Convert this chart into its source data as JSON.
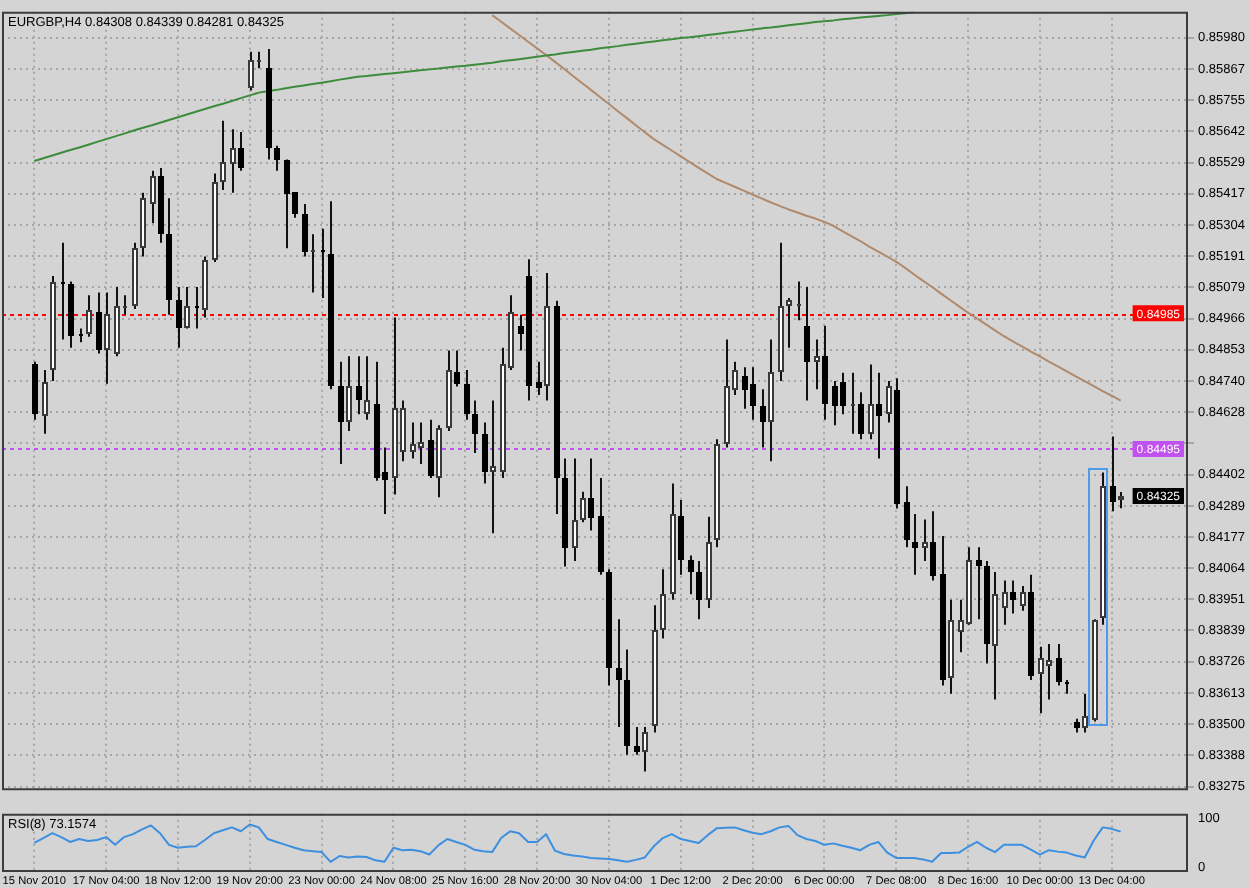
{
  "chart_data": [
    {
      "type": "candlestick",
      "title": "EURGBP,H4 0.84308 0.84339 0.84281 0.84325",
      "categories": [
        null,
        null,
        null,
        null,
        null,
        null,
        null,
        null,
        null,
        null,
        null,
        null,
        null,
        null,
        null,
        null,
        null,
        null,
        null,
        null,
        null,
        null,
        null,
        null,
        null,
        null,
        null,
        null,
        null,
        null,
        null,
        null,
        null,
        null,
        null,
        null,
        null,
        null,
        null,
        null,
        null,
        null,
        null,
        null,
        null,
        null,
        null,
        null,
        null,
        null,
        null,
        null,
        null,
        null,
        null,
        null,
        null,
        null,
        null,
        null,
        null,
        null,
        null,
        null,
        null,
        null,
        null,
        null,
        null,
        null,
        null,
        null,
        null,
        null,
        null,
        null,
        null,
        null,
        null,
        null,
        null,
        null,
        null,
        null,
        null,
        null,
        null,
        null,
        null,
        null,
        null,
        null,
        null,
        null,
        null,
        null,
        null,
        null,
        null,
        null,
        null,
        null,
        null,
        null,
        null,
        null,
        null,
        null,
        null,
        null,
        null,
        null,
        null,
        null,
        null,
        null,
        null,
        null,
        null,
        null,
        null,
        null
      ],
      "ohlc": [
        [
          0.848,
          0.8481,
          0.846,
          0.8462
        ],
        [
          0.8462,
          0.8478,
          0.8455,
          0.8474
        ],
        [
          0.8478,
          0.8512,
          0.8474,
          0.851
        ],
        [
          0.851,
          0.8524,
          0.8489,
          0.8509
        ],
        [
          0.8509,
          0.851,
          0.8486,
          0.849
        ],
        [
          0.8491,
          0.8493,
          0.8488,
          0.849
        ],
        [
          0.8491,
          0.8505,
          0.849,
          0.85
        ],
        [
          0.8499,
          0.8506,
          0.8484,
          0.8485
        ],
        [
          0.8485,
          0.8506,
          0.8473,
          0.8498
        ],
        [
          0.8484,
          0.8508,
          0.8483,
          0.8501
        ],
        [
          0.8501,
          0.8505,
          0.8498,
          0.8501
        ],
        [
          0.8501,
          0.8524,
          0.85,
          0.8522
        ],
        [
          0.8522,
          0.8542,
          0.8519,
          0.854
        ],
        [
          0.8538,
          0.855,
          0.8531,
          0.8548
        ],
        [
          0.8548,
          0.8551,
          0.8524,
          0.8527
        ],
        [
          0.8527,
          0.854,
          0.8498,
          0.8503
        ],
        [
          0.8503,
          0.8508,
          0.8486,
          0.8493
        ],
        [
          0.8493,
          0.8508,
          0.8493,
          0.8501
        ],
        [
          0.8501,
          0.8508,
          0.8493,
          0.85
        ],
        [
          0.85,
          0.8519,
          0.8497,
          0.8518
        ],
        [
          0.8518,
          0.8549,
          0.8517,
          0.8546
        ],
        [
          0.8546,
          0.8568,
          0.8543,
          0.8553
        ],
        [
          0.8552,
          0.8565,
          0.8542,
          0.8558
        ],
        [
          0.8558,
          0.8564,
          0.855,
          0.8551
        ],
        [
          0.858,
          0.8593,
          0.8579,
          0.859
        ],
        [
          0.8589,
          0.8593,
          0.8587,
          0.859
        ],
        [
          0.8587,
          0.8594,
          0.8554,
          0.8558
        ],
        [
          0.8558,
          0.8559,
          0.855,
          0.8554
        ],
        [
          0.8554,
          0.8554,
          0.8522,
          0.8542
        ],
        [
          0.8542,
          0.8542,
          0.8533,
          0.8534
        ],
        [
          0.8534,
          0.8538,
          0.8519,
          0.852
        ],
        [
          0.852,
          0.8527,
          0.8506,
          0.8521
        ],
        [
          0.8521,
          0.8529,
          0.8504,
          0.852
        ],
        [
          0.852,
          0.8539,
          0.8471,
          0.8472
        ],
        [
          0.8472,
          0.8481,
          0.8444,
          0.8459
        ],
        [
          0.8459,
          0.8483,
          0.8456,
          0.8472
        ],
        [
          0.8472,
          0.8483,
          0.8462,
          0.8467
        ],
        [
          0.8462,
          0.8483,
          0.846,
          0.8467
        ],
        [
          0.8466,
          0.8481,
          0.8438,
          0.8439
        ],
        [
          0.8441,
          0.845,
          0.8426,
          0.8438
        ],
        [
          0.8439,
          0.8497,
          0.8433,
          0.8464
        ],
        [
          0.8448,
          0.8467,
          0.8445,
          0.8464
        ],
        [
          0.8448,
          0.8459,
          0.8446,
          0.8451
        ],
        [
          0.845,
          0.8459,
          0.8444,
          0.8452
        ],
        [
          0.8453,
          0.846,
          0.8439,
          0.844
        ],
        [
          0.8439,
          0.8458,
          0.8432,
          0.8457
        ],
        [
          0.8457,
          0.8485,
          0.8456,
          0.8478
        ],
        [
          0.8477,
          0.8485,
          0.8472,
          0.8473
        ],
        [
          0.8473,
          0.8478,
          0.846,
          0.8462
        ],
        [
          0.8462,
          0.8467,
          0.8448,
          0.8455
        ],
        [
          0.8455,
          0.8459,
          0.8437,
          0.8441
        ],
        [
          0.8441,
          0.8467,
          0.8419,
          0.8443
        ],
        [
          0.8441,
          0.8486,
          0.8439,
          0.848
        ],
        [
          0.8479,
          0.8505,
          0.8478,
          0.8499
        ],
        [
          0.8494,
          0.8498,
          0.8485,
          0.8491
        ],
        [
          0.8512,
          0.8518,
          0.8467,
          0.8472
        ],
        [
          0.8474,
          0.8481,
          0.8469,
          0.8472
        ],
        [
          0.8472,
          0.8513,
          0.8467,
          0.8501
        ],
        [
          0.8501,
          0.8503,
          0.8426,
          0.8439
        ],
        [
          0.8439,
          0.8446,
          0.8407,
          0.8414
        ],
        [
          0.8414,
          0.8446,
          0.8409,
          0.8424
        ],
        [
          0.8424,
          0.8434,
          0.8423,
          0.8432
        ],
        [
          0.8432,
          0.8446,
          0.842,
          0.8425
        ],
        [
          0.8425,
          0.8439,
          0.8404,
          0.8405
        ],
        [
          0.8405,
          0.8406,
          0.8364,
          0.837
        ],
        [
          0.837,
          0.8388,
          0.8349,
          0.8366
        ],
        [
          0.8366,
          0.8377,
          0.8339,
          0.8342
        ],
        [
          0.8342,
          0.8349,
          0.8339,
          0.834
        ],
        [
          0.834,
          0.8349,
          0.8333,
          0.8347
        ],
        [
          0.8349,
          0.8393,
          0.8347,
          0.8384
        ],
        [
          0.8384,
          0.8406,
          0.8381,
          0.8397
        ],
        [
          0.8397,
          0.8437,
          0.8395,
          0.8426
        ],
        [
          0.8425,
          0.8431,
          0.8404,
          0.8409
        ],
        [
          0.8409,
          0.8411,
          0.8397,
          0.8405
        ],
        [
          0.8405,
          0.8409,
          0.8388,
          0.8395
        ],
        [
          0.8395,
          0.8425,
          0.8392,
          0.8416
        ],
        [
          0.8416,
          0.8453,
          0.8414,
          0.8451
        ],
        [
          0.8451,
          0.8489,
          0.845,
          0.8472
        ],
        [
          0.8471,
          0.8481,
          0.8469,
          0.8478
        ],
        [
          0.8476,
          0.8479,
          0.8464,
          0.8471
        ],
        [
          0.8473,
          0.8479,
          0.846,
          0.8465
        ],
        [
          0.8465,
          0.8471,
          0.845,
          0.8459
        ],
        [
          0.8459,
          0.8489,
          0.8445,
          0.8477
        ],
        [
          0.8477,
          0.8524,
          0.8474,
          0.8501
        ],
        [
          0.8501,
          0.8504,
          0.8486,
          0.8503
        ],
        [
          0.8501,
          0.851,
          0.8496,
          0.8502
        ],
        [
          0.8494,
          0.8508,
          0.8467,
          0.8481
        ],
        [
          0.8481,
          0.8489,
          0.8471,
          0.8483
        ],
        [
          0.8483,
          0.8494,
          0.846,
          0.8466
        ],
        [
          0.8472,
          0.8474,
          0.8458,
          0.8465
        ],
        [
          0.8474,
          0.8477,
          0.8462,
          0.8465
        ],
        [
          0.8465,
          0.8477,
          0.8455,
          0.8466
        ],
        [
          0.8466,
          0.847,
          0.8453,
          0.8455
        ],
        [
          0.8455,
          0.848,
          0.8453,
          0.8466
        ],
        [
          0.8466,
          0.8477,
          0.8446,
          0.8462
        ],
        [
          0.8462,
          0.8474,
          0.8459,
          0.8472
        ],
        [
          0.8471,
          0.8475,
          0.8428,
          0.843
        ],
        [
          0.843,
          0.8436,
          0.8414,
          0.8416
        ],
        [
          0.8416,
          0.8426,
          0.8404,
          0.8414
        ],
        [
          0.8414,
          0.8424,
          0.8409,
          0.8416
        ],
        [
          0.8416,
          0.8427,
          0.8402,
          0.8404
        ],
        [
          0.8404,
          0.8418,
          0.8364,
          0.8366
        ],
        [
          0.8367,
          0.8395,
          0.8361,
          0.8388
        ],
        [
          0.8384,
          0.8395,
          0.8376,
          0.8388
        ],
        [
          0.8386,
          0.8414,
          0.8386,
          0.8409
        ],
        [
          0.8409,
          0.8414,
          0.8388,
          0.8407
        ],
        [
          0.8407,
          0.8409,
          0.8372,
          0.8379
        ],
        [
          0.8378,
          0.8405,
          0.8359,
          0.8397
        ],
        [
          0.8392,
          0.8402,
          0.8386,
          0.8398
        ],
        [
          0.8398,
          0.8402,
          0.839,
          0.8395
        ],
        [
          0.8393,
          0.84,
          0.8391,
          0.8398
        ],
        [
          0.8398,
          0.8404,
          0.8366,
          0.8368
        ],
        [
          0.8368,
          0.8378,
          0.8354,
          0.8374
        ],
        [
          0.8371,
          0.8379,
          0.8359,
          0.8373
        ],
        [
          0.8374,
          0.8379,
          0.8364,
          0.8365
        ],
        [
          0.8365,
          0.8366,
          0.8361,
          0.8364
        ],
        [
          0.8351,
          0.8352,
          0.8347,
          0.8349
        ],
        [
          0.8349,
          0.8361,
          0.8347,
          0.8353
        ],
        [
          0.8352,
          0.8388,
          0.8351,
          0.8388
        ],
        [
          0.8388,
          0.8441,
          0.8386,
          0.8436
        ],
        [
          0.8436,
          0.8454,
          0.8427,
          0.843
        ],
        [
          0.84308,
          0.84339,
          0.84281,
          0.84325
        ]
      ],
      "series": [
        {
          "type": "line",
          "color": "#3c8c3c",
          "values": [
            0.85535,
            0.85545,
            0.85555,
            0.85565,
            0.85575,
            0.85584,
            0.85594,
            0.85604,
            0.85614,
            0.85624,
            0.85634,
            0.85644,
            0.85654,
            0.85663,
            0.85673,
            0.85683,
            0.85693,
            0.85703,
            0.85713,
            0.85723,
            0.85733,
            0.85742,
            0.85752,
            0.85762,
            0.85772,
            0.85782,
            0.85787,
            0.85792,
            0.85798,
            0.85803,
            0.85808,
            0.85813,
            0.85818,
            0.85823,
            0.85829,
            0.85834,
            0.85839,
            0.85842,
            0.85846,
            0.85849,
            0.85852,
            0.85856,
            0.85859,
            0.85863,
            0.85866,
            0.85869,
            0.85873,
            0.85876,
            0.85879,
            0.85883,
            0.85886,
            0.8589,
            0.85895,
            0.85899,
            0.85903,
            0.85907,
            0.85912,
            0.85916,
            0.8592,
            0.85925,
            0.85929,
            0.85933,
            0.85937,
            0.85942,
            0.85946,
            0.8595,
            0.85955,
            0.85959,
            0.85963,
            0.85967,
            0.85971,
            0.85975,
            0.85979,
            0.85982,
            0.85986,
            0.8599,
            0.85994,
            0.85998,
            0.86002,
            0.86006,
            0.8601,
            0.86014,
            0.86017,
            0.86021,
            0.86025,
            0.86029,
            0.86033,
            0.86037,
            0.8604,
            0.86043,
            0.86047,
            0.8605,
            0.86053,
            0.86056,
            0.86059,
            0.86062,
            0.86066,
            0.86069,
            0.86072,
            null,
            null,
            null,
            null,
            null,
            null,
            null,
            null,
            null,
            null,
            null,
            null,
            null,
            null,
            null,
            null,
            null,
            null,
            null,
            null,
            null,
            null,
            null
          ]
        },
        {
          "type": "line",
          "color": "#b08a6c",
          "values": [
            null,
            null,
            null,
            null,
            null,
            null,
            null,
            null,
            null,
            null,
            null,
            null,
            null,
            null,
            null,
            null,
            null,
            null,
            null,
            null,
            null,
            null,
            null,
            null,
            null,
            null,
            null,
            null,
            null,
            null,
            null,
            null,
            null,
            null,
            null,
            null,
            null,
            null,
            null,
            null,
            null,
            null,
            null,
            null,
            null,
            null,
            null,
            null,
            null,
            null,
            null,
            0.86062,
            0.86038,
            0.86014,
            0.8599,
            0.85966,
            0.85942,
            0.85918,
            0.85893,
            0.85868,
            0.85842,
            0.85817,
            0.85792,
            0.85766,
            0.85741,
            0.85715,
            0.8569,
            0.85664,
            0.85639,
            0.85614,
            0.85593,
            0.85573,
            0.85552,
            0.85531,
            0.8551,
            0.8549,
            0.8547,
            0.85456,
            0.85442,
            0.85428,
            0.85414,
            0.854,
            0.85386,
            0.85373,
            0.8536,
            0.85349,
            0.85337,
            0.85327,
            0.85315,
            0.85301,
            0.85282,
            0.85264,
            0.85246,
            0.85226,
            0.85208,
            0.8519,
            0.85171,
            0.85149,
            0.85125,
            0.85102,
            0.8508,
            0.85056,
            0.85033,
            0.8501,
            0.84987,
            0.84966,
            0.84945,
            0.84923,
            0.84902,
            0.84883,
            0.84865,
            0.84846,
            0.84829,
            0.8481,
            0.84793,
            0.84775,
            0.84757,
            0.8474,
            0.84722,
            0.84704,
            0.84687,
            0.84669
          ]
        }
      ],
      "ylim": [
        0.83262,
        0.86074
      ],
      "yticks": [
        0.83275,
        0.83388,
        {
          "value": 0.835,
          "label": "0.83500"
        },
        0.83613,
        0.83726,
        0.83839,
        0.83951,
        0.84064,
        0.84177,
        0.84289,
        0.84402,
        {
          "value": 0.84515,
          "label": null
        },
        0.84628,
        {
          "value": 0.8474,
          "label": "0.84740"
        },
        0.84853,
        0.84966,
        0.85079,
        0.85191,
        0.85304,
        0.85417,
        0.85529,
        0.85642,
        0.85755,
        0.85867,
        {
          "value": 0.8598,
          "label": "0.85980"
        }
      ],
      "ref_lines": [
        {
          "axis": "y",
          "value": 0.84985,
          "label": "0.84985",
          "color": "#ff0000",
          "line_style": "dotted"
        },
        {
          "axis": "y",
          "value": 0.84495,
          "label": "0.84495",
          "color": "#c050f0",
          "line_style": "dotted"
        }
      ],
      "annotations": [
        "0.84325"
      ],
      "grid": true,
      "marker": "none"
    },
    {
      "type": "line",
      "title": "RSI(8) 73.1574",
      "categories": [
        "15 Nov 2010",
        null,
        null,
        null,
        null,
        null,
        null,
        null,
        "17 Nov 04:00",
        null,
        null,
        null,
        null,
        null,
        null,
        null,
        "18 Nov 12:00",
        null,
        null,
        null,
        null,
        null,
        null,
        null,
        "19 Nov 20:00",
        null,
        null,
        null,
        null,
        null,
        null,
        null,
        "23 Nov 00:00",
        null,
        null,
        null,
        null,
        null,
        null,
        null,
        "24 Nov 08:00",
        null,
        null,
        null,
        null,
        null,
        null,
        null,
        "25 Nov 16:00",
        null,
        null,
        null,
        null,
        null,
        null,
        null,
        "28 Nov 20:00",
        null,
        null,
        null,
        null,
        null,
        null,
        null,
        "30 Nov 04:00",
        null,
        null,
        null,
        null,
        null,
        null,
        null,
        "1 Dec 12:00",
        null,
        null,
        null,
        null,
        null,
        null,
        null,
        "2 Dec 20:00",
        null,
        null,
        null,
        null,
        null,
        null,
        null,
        "6 Dec 00:00",
        null,
        null,
        null,
        null,
        null,
        null,
        null,
        "7 Dec 08:00",
        null,
        null,
        null,
        null,
        null,
        null,
        null,
        "8 Dec 16:00",
        null,
        null,
        null,
        null,
        null,
        null,
        null,
        "10 Dec 00:00",
        null,
        null,
        null,
        null,
        null,
        null,
        null,
        "13 Dec 04:00",
        null
      ],
      "series": [
        {
          "color": "#3d8fe0",
          "values": [
            50,
            60,
            70,
            62,
            52,
            58,
            54,
            56,
            62,
            46,
            62,
            68,
            78,
            86,
            70,
            46,
            40,
            42,
            43,
            56,
            70,
            76,
            82,
            74,
            88,
            82,
            58,
            52,
            46,
            40,
            35,
            33,
            31,
            11,
            23,
            20,
            22,
            21,
            14,
            11,
            40,
            35,
            36,
            33,
            26,
            45,
            58,
            52,
            46,
            36,
            33,
            31,
            60,
            74,
            70,
            52,
            52,
            68,
            34,
            27,
            24,
            22,
            19,
            18,
            17,
            14,
            11,
            15,
            20,
            43,
            60,
            68,
            58,
            54,
            50,
            66,
            80,
            81,
            82,
            76,
            71,
            68,
            74,
            82,
            85,
            66,
            58,
            54,
            46,
            49,
            44,
            40,
            35,
            46,
            52,
            30,
            19,
            19,
            19,
            16,
            11,
            29,
            29,
            30,
            42,
            52,
            40,
            31,
            46,
            46,
            46,
            36,
            26,
            35,
            32,
            30,
            24,
            20,
            55,
            82,
            79,
            73.1574
          ]
        }
      ],
      "ylim": [
        -10,
        110
      ],
      "yticks": [
        0,
        100
      ],
      "grid": "x",
      "marker": "none"
    }
  ]
}
